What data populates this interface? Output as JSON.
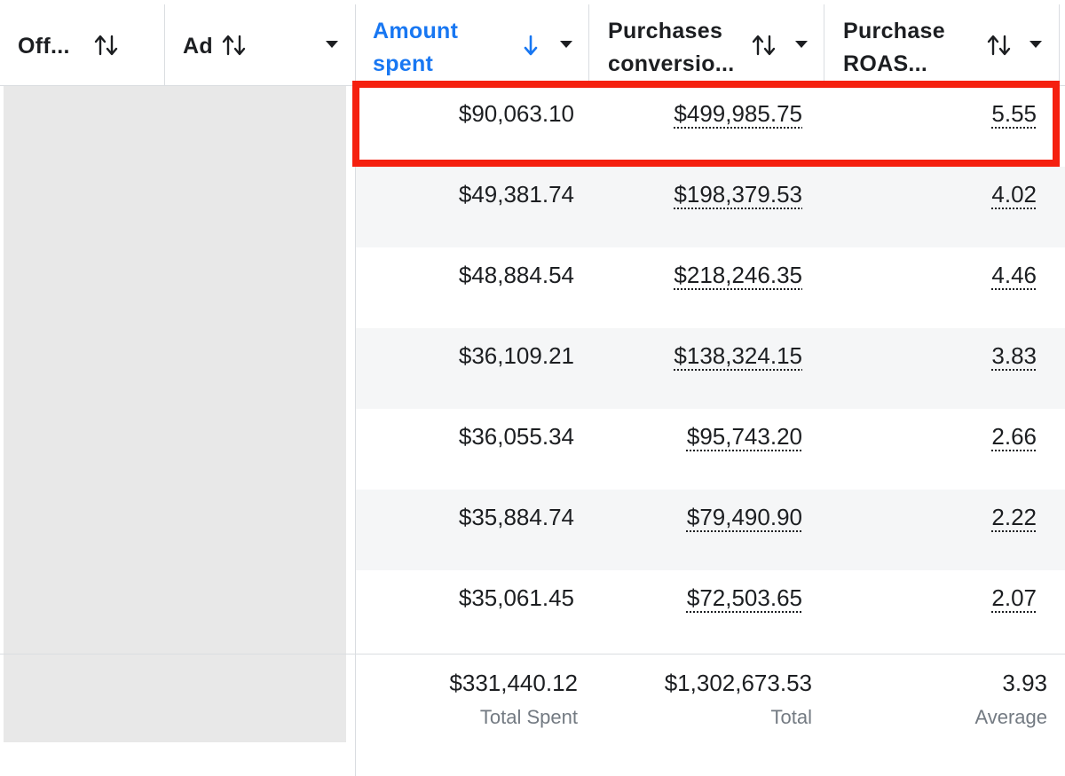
{
  "header": {
    "columns": [
      {
        "label": "Off...",
        "sort_icon": "sort-updown-icon"
      },
      {
        "label": "Ad",
        "sort_icon": "sort-updown-icon",
        "menu_icon": "chevron-down-icon"
      },
      {
        "label_line1": "Amount",
        "label_line2": "spent",
        "sort_icon": "sort-down-icon",
        "menu_icon": "chevron-down-icon",
        "active": true
      },
      {
        "label_line1": "Purchases",
        "label_line2": "conversio...",
        "sort_icon": "sort-updown-icon",
        "menu_icon": "chevron-down-icon"
      },
      {
        "label_line1": "Purchase",
        "label_line2": "ROAS...",
        "sort_icon": "sort-updown-icon",
        "menu_icon": "chevron-down-icon"
      }
    ]
  },
  "rows": [
    {
      "amount_spent": "$90,063.10",
      "purchases_value": "$499,985.75",
      "roas": "5.55"
    },
    {
      "amount_spent": "$49,381.74",
      "purchases_value": "$198,379.53",
      "roas": "4.02"
    },
    {
      "amount_spent": "$48,884.54",
      "purchases_value": "$218,246.35",
      "roas": "4.46"
    },
    {
      "amount_spent": "$36,109.21",
      "purchases_value": "$138,324.15",
      "roas": "3.83"
    },
    {
      "amount_spent": "$36,055.34",
      "purchases_value": "$95,743.20",
      "roas": "2.66"
    },
    {
      "amount_spent": "$35,884.74",
      "purchases_value": "$79,490.90",
      "roas": "2.22"
    },
    {
      "amount_spent": "$35,061.45",
      "purchases_value": "$72,503.65",
      "roas": "2.07"
    }
  ],
  "totals": {
    "amount_spent": {
      "value": "$331,440.12",
      "label": "Total Spent"
    },
    "purchases_value": {
      "value": "$1,302,673.53",
      "label": "Total"
    },
    "roas": {
      "value": "3.93",
      "label": "Average"
    }
  },
  "colors": {
    "active_header": "#1877f2",
    "highlight_border": "#f5200f",
    "row_shade": "#f5f6f7",
    "redacted_block": "#e8e8e8"
  }
}
